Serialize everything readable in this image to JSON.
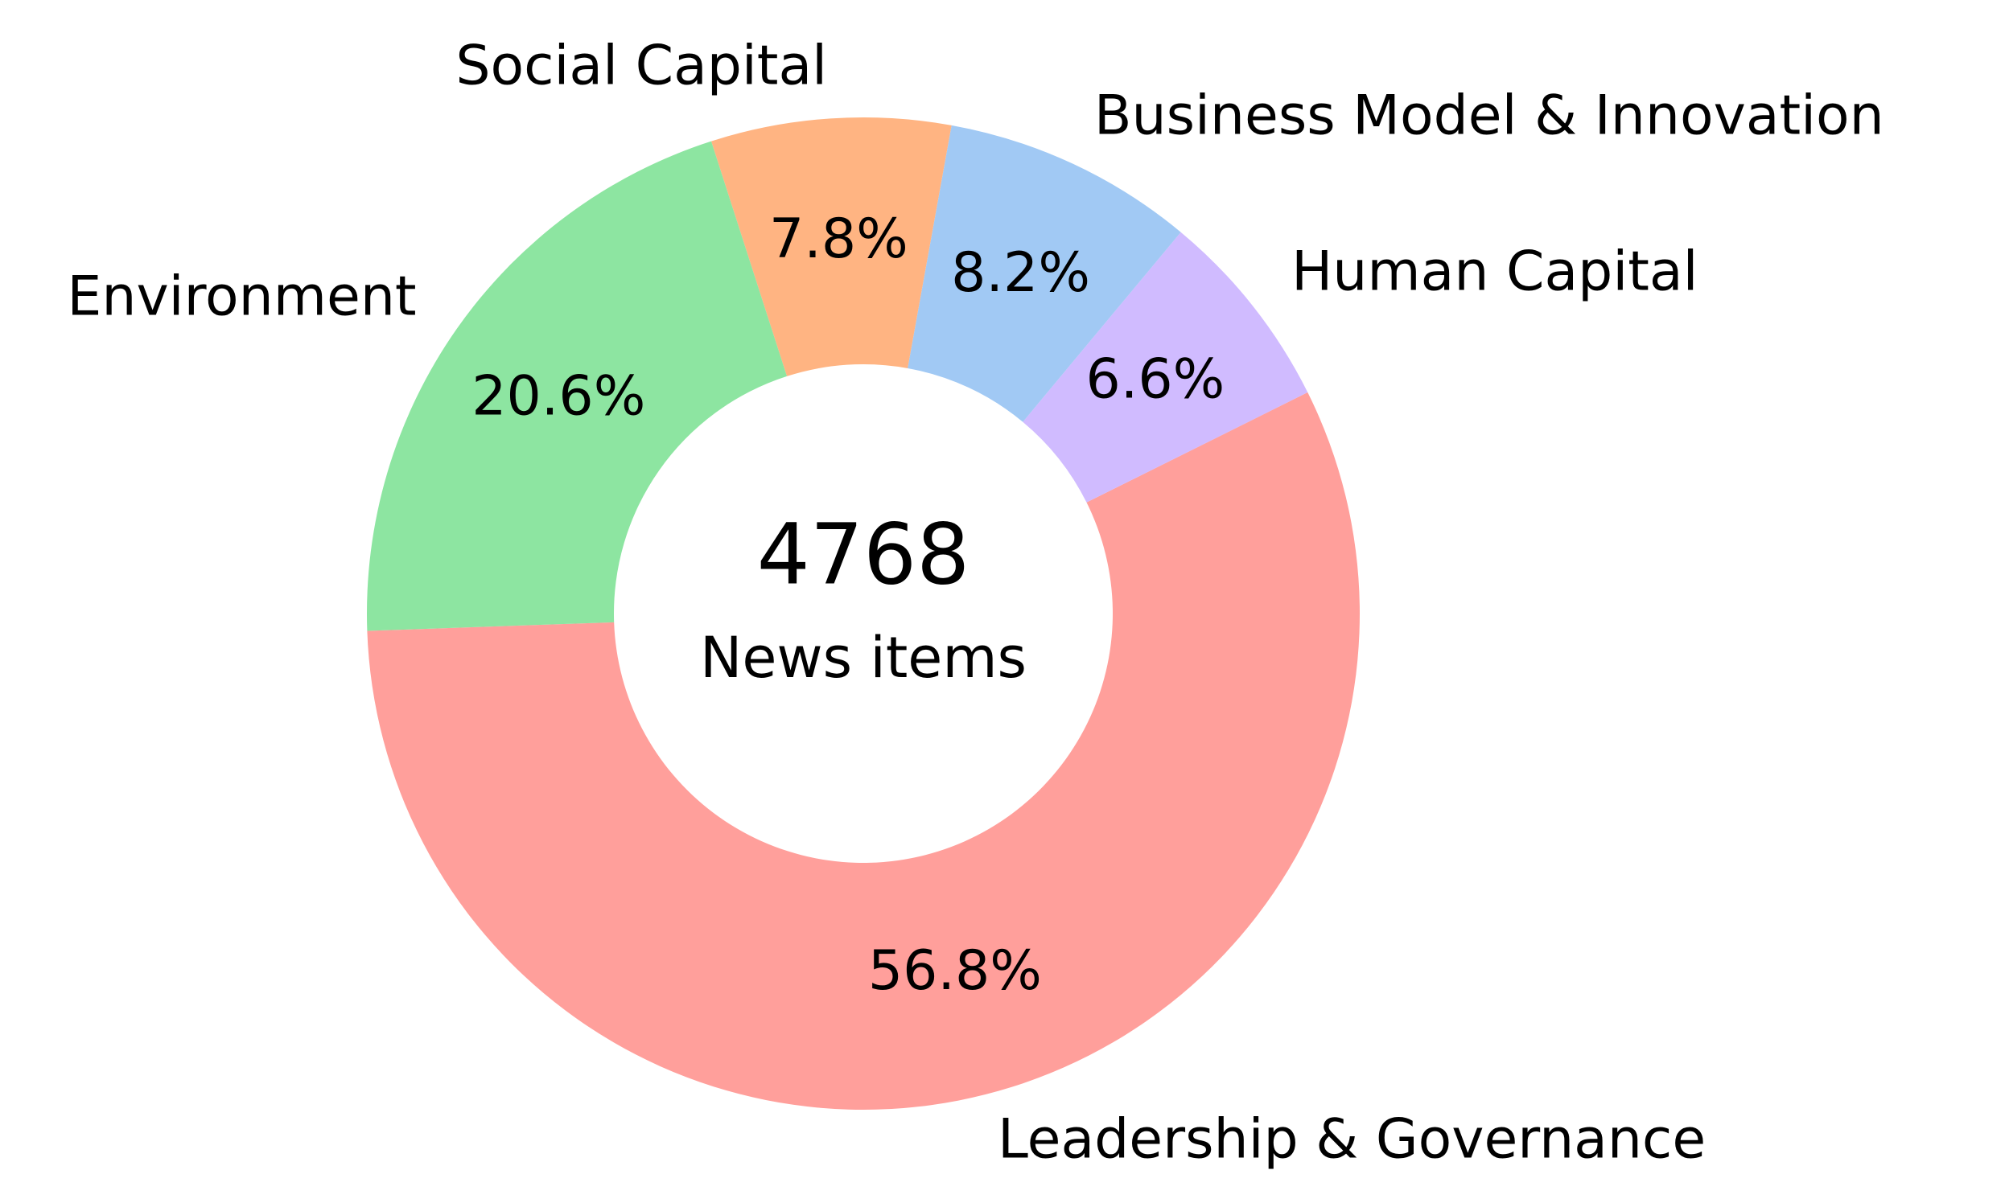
{
  "chart_data": {
    "type": "donut",
    "categories": [
      "Leadership & Governance",
      "Human Capital",
      "Business Model & Innovation",
      "Social Capital",
      "Environment"
    ],
    "values": [
      56.8,
      6.6,
      8.2,
      7.8,
      20.6
    ],
    "value_labels": [
      "56.8%",
      "6.6%",
      "8.2%",
      "7.8%",
      "20.6%"
    ],
    "colors": [
      "#ff9f9b",
      "#d0bbff",
      "#a1c9f4",
      "#ffb482",
      "#8de5a1"
    ],
    "center_value": "4768",
    "center_label": "News items"
  }
}
